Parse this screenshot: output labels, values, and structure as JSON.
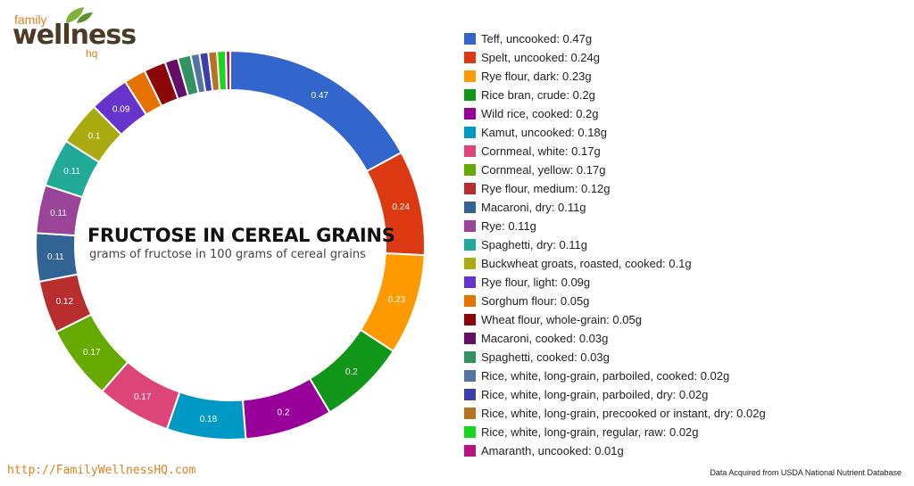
{
  "logo": {
    "top": "family",
    "main": "wellness",
    "sub": "hq"
  },
  "footer": {
    "url": "http://FamilyWellnessHQ.com",
    "source": "Data Acquired from USDA National Nutrient Database"
  },
  "colors": {
    "accent": "#d9821f",
    "brand_dark": "#4a3a26",
    "leaf": "#7fb33a"
  },
  "chart_data": {
    "type": "pie",
    "variant": "donut",
    "title": "FRUCTOSE IN CEREAL GRAINS",
    "subtitle": "grams of fructose in 100 grams of cereal grains",
    "legend_placement": "right",
    "unit": "g",
    "categories": [
      "Teff, uncooked",
      "Spelt, uncooked",
      "Rye flour, dark",
      "Rice bran, crude",
      "Wild rice, cooked",
      "Kamut, uncooked",
      "Cornmeal, white",
      "Cornmeal, yellow",
      "Rye flour, medium",
      "Macaroni, dry",
      "Rye",
      "Spaghetti, dry",
      "Buckwheat groats, roasted, cooked",
      "Rye flour, light",
      "Sorghum flour",
      "Wheat flour, whole-grain",
      "Macaroni, cooked",
      "Spaghetti, cooked",
      "Rice, white, long-grain, parboiled, cooked",
      "Rice, white, long-grain, parboiled, dry",
      "Rice, white, long-grain, precooked or instant, dry",
      "Rice, white, long-grain, regular, raw",
      "Amaranth, uncooked"
    ],
    "values": [
      0.47,
      0.24,
      0.23,
      0.2,
      0.2,
      0.18,
      0.17,
      0.17,
      0.12,
      0.11,
      0.11,
      0.11,
      0.1,
      0.09,
      0.05,
      0.05,
      0.03,
      0.03,
      0.02,
      0.02,
      0.02,
      0.02,
      0.01
    ],
    "legend_labels": [
      "Teff, uncooked: 0.47g",
      "Spelt, uncooked: 0.24g",
      "Rye flour, dark: 0.23g",
      "Rice bran, crude: 0.2g",
      "Wild rice, cooked: 0.2g",
      "Kamut, uncooked: 0.18g",
      "Cornmeal, white: 0.17g",
      "Cornmeal, yellow: 0.17g",
      "Rye flour, medium: 0.12g",
      "Macaroni, dry: 0.11g",
      "Rye: 0.11g",
      "Spaghetti, dry: 0.11g",
      "Buckwheat groats, roasted, cooked: 0.1g",
      "Rye flour, light: 0.09g",
      "Sorghum flour: 0.05g",
      "Wheat flour, whole-grain: 0.05g",
      "Macaroni, cooked: 0.03g",
      "Spaghetti, cooked: 0.03g",
      "Rice, white, long-grain, parboiled, cooked: 0.02g",
      "Rice, white, long-grain, parboiled, dry: 0.02g",
      "Rice, white, long-grain, precooked or instant, dry: 0.02g",
      "Rice, white, long-grain, regular, raw: 0.02g",
      "Amaranth, uncooked: 0.01g"
    ],
    "slice_labels": [
      "0.47",
      "0.24",
      "0.23",
      "0.2",
      "0.2",
      "0.18",
      "0.17",
      "0.17",
      "0.12",
      "0.11",
      "0.11",
      "0.11",
      "0.1",
      "0.09",
      "",
      "",
      "",
      "",
      "",
      "",
      "",
      "",
      ""
    ],
    "colors": [
      "#3366cc",
      "#dc3912",
      "#ff9900",
      "#109618",
      "#990099",
      "#0099c6",
      "#dd4477",
      "#66aa00",
      "#b82e2e",
      "#316395",
      "#994499",
      "#22aa99",
      "#aaaa11",
      "#6633cc",
      "#e67300",
      "#8b0707",
      "#651067",
      "#329262",
      "#5574a6",
      "#3b3eac",
      "#b77322",
      "#16d620",
      "#b91383"
    ]
  }
}
